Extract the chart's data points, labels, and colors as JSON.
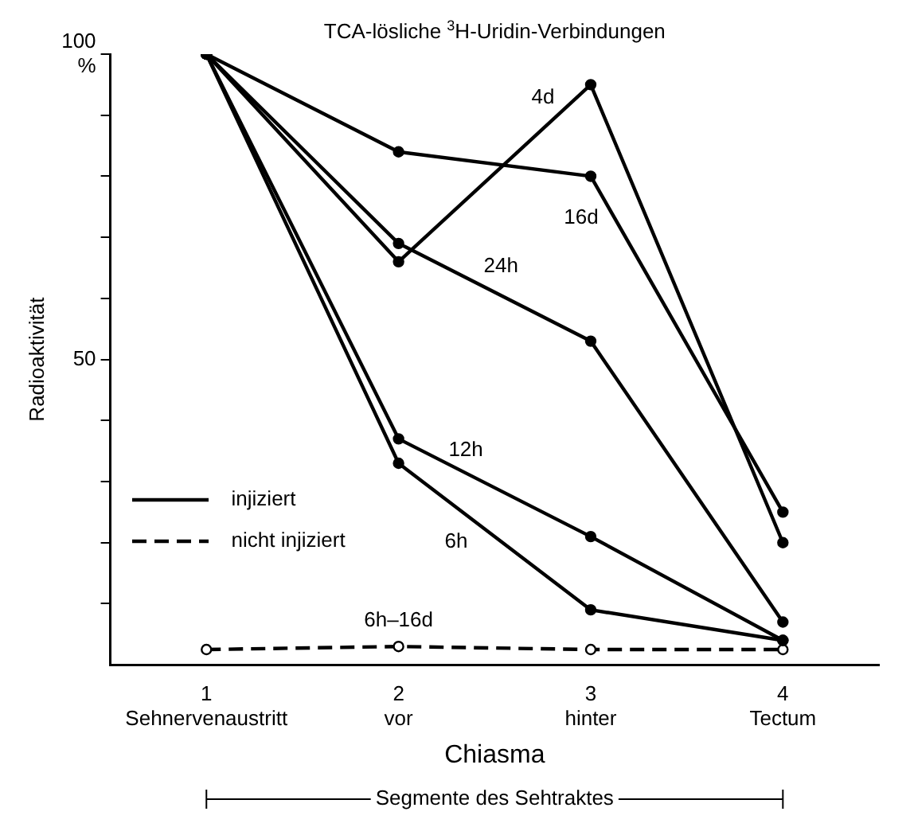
{
  "chart_data": {
    "type": "line",
    "title": "TCA-lösliche $^{3}$H-Uridin-Verbindungen",
    "ylabel": "Radioaktivität",
    "xlabel": "Chiasma",
    "categories": [
      "1\nSehnervenaustritt",
      "2\nvor",
      "3\nhinter",
      "4\nTectum"
    ],
    "series": [
      {
        "name": "4d",
        "color": "#000000",
        "values": [
          100,
          66,
          95,
          20
        ],
        "line_style": "solid"
      },
      {
        "name": "16d",
        "color": "#000000",
        "values": [
          100,
          84,
          80,
          25
        ],
        "line_style": "solid"
      },
      {
        "name": "24h",
        "color": "#000000",
        "values": [
          100,
          69,
          53,
          7
        ],
        "line_style": "solid"
      },
      {
        "name": "12h",
        "color": "#000000",
        "values": [
          100,
          37,
          21,
          4
        ],
        "line_style": "solid"
      },
      {
        "name": "6h",
        "color": "#000000",
        "values": [
          100,
          33,
          9,
          4
        ],
        "line_style": "solid"
      },
      {
        "name": "6h–16d",
        "color": "#000000",
        "values": [
          2.5,
          3,
          2.5,
          2.5
        ],
        "line_style": "dashed"
      }
    ],
    "ylim": [
      0,
      100
    ],
    "yticks": [
      {
        "value": 10,
        "label": null
      },
      {
        "value": 20,
        "label": null
      },
      {
        "value": 30,
        "label": null
      },
      {
        "value": 40,
        "label": null
      },
      50,
      {
        "value": 60,
        "label": null
      },
      {
        "value": 70,
        "label": null
      },
      {
        "value": 80,
        "label": null
      },
      {
        "value": 90,
        "label": null
      },
      {
        "value": 100,
        "label": "100\n%"
      }
    ],
    "annotations": [
      "injiziert",
      "nicht injiziert",
      "Segmente des Sehtraktes"
    ],
    "marker": "circle",
    "grid": false,
    "legend": false
  }
}
